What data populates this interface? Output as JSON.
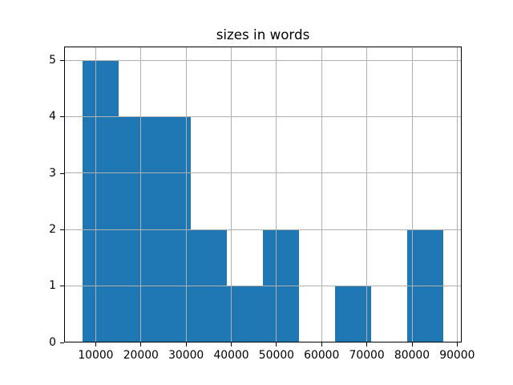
{
  "colors": {
    "bar": "#1f77b4",
    "grid": "#b0b0b0",
    "spine": "#000000",
    "text": "#000000",
    "background": "#ffffff"
  },
  "chart_data": {
    "type": "histogram",
    "title": "sizes in words",
    "xlabel": "",
    "ylabel": "",
    "bin_edges": [
      7000,
      15000,
      23000,
      31000,
      39000,
      47000,
      55000,
      63000,
      71000,
      79000,
      87000
    ],
    "counts": [
      5,
      4,
      4,
      2,
      1,
      2,
      0,
      1,
      0,
      2
    ],
    "xlim": [
      3000,
      91000
    ],
    "ylim": [
      0,
      5.25
    ],
    "x_ticks": [
      10000,
      20000,
      30000,
      40000,
      50000,
      60000,
      70000,
      80000,
      90000
    ],
    "x_tick_labels": [
      "10000",
      "20000",
      "30000",
      "40000",
      "50000",
      "60000",
      "70000",
      "80000",
      "90000"
    ],
    "y_ticks": [
      0,
      1,
      2,
      3,
      4,
      5
    ],
    "y_tick_labels": [
      "0",
      "1",
      "2",
      "3",
      "4",
      "5"
    ],
    "grid": true,
    "grid_above_bars": true,
    "legend_visible": false
  }
}
